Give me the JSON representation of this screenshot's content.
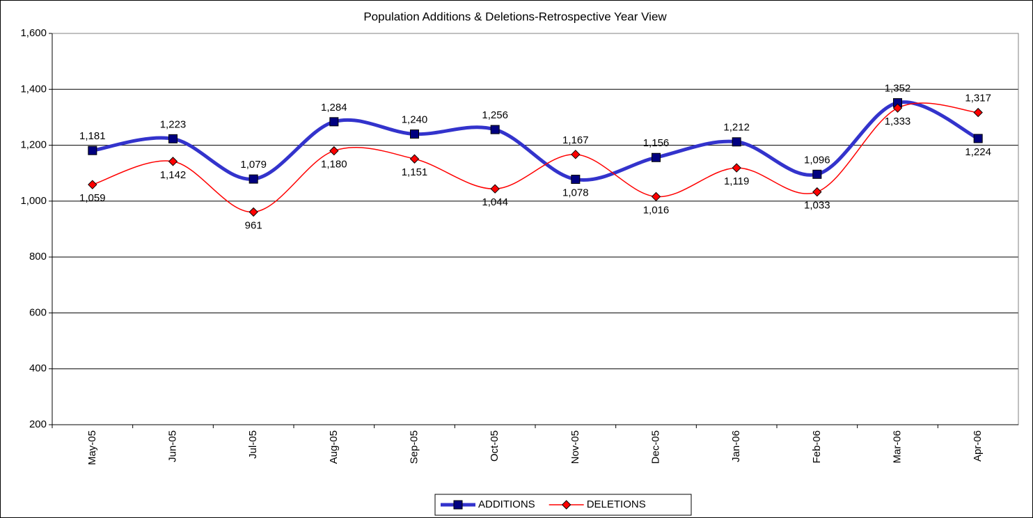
{
  "chart_data": {
    "type": "line",
    "title": "Population Additions & Deletions-Retrospective Year View",
    "categories": [
      "May-05",
      "Jun-05",
      "Jul-05",
      "Aug-05",
      "Sep-05",
      "Oct-05",
      "Nov-05",
      "Dec-05",
      "Jan-06",
      "Feb-06",
      "Mar-06",
      "Apr-06"
    ],
    "series": [
      {
        "name": "ADDITIONS",
        "color": "#3333cc",
        "marker": "square",
        "line_width": 5,
        "values": [
          1181,
          1223,
          1079,
          1284,
          1240,
          1256,
          1078,
          1156,
          1212,
          1096,
          1352,
          1224
        ],
        "value_labels": [
          "1,181",
          "1,223",
          "1,079",
          "1,284",
          "1,240",
          "1,256",
          "1,078",
          "1,156",
          "1,212",
          "1,096",
          "1,352",
          "1,224"
        ]
      },
      {
        "name": "DELETIONS",
        "color": "#ff0000",
        "marker": "diamond",
        "line_width": 1.5,
        "values": [
          1059,
          1142,
          961,
          1180,
          1151,
          1044,
          1167,
          1016,
          1119,
          1033,
          1333,
          1317
        ],
        "value_labels": [
          "1,059",
          "1,142",
          "961",
          "1,180",
          "1,151",
          "1,044",
          "1,167",
          "1,016",
          "1,119",
          "1,033",
          "1,333",
          "1,317"
        ]
      }
    ],
    "ylim": [
      200,
      1600
    ],
    "yticks": [
      200,
      400,
      600,
      800,
      {
        "value": 1000,
        "label": "1,000"
      },
      {
        "value": 1200,
        "label": "1,200"
      },
      {
        "value": 1400,
        "label": "1,400"
      },
      {
        "value": 1600,
        "label": "1,600"
      }
    ],
    "grid": true,
    "smooth": true,
    "legend": "bottom"
  }
}
